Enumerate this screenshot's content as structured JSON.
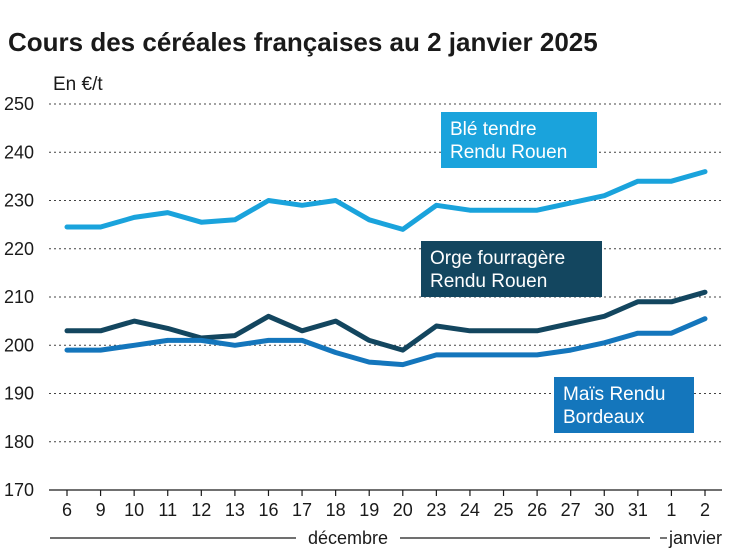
{
  "chart_data": {
    "type": "line",
    "title": "Cours des céréales françaises au 2 janvier 2025",
    "ylabel": "En €/t",
    "xlabel": "",
    "ylim": [
      170,
      250
    ],
    "yticks": [
      170,
      180,
      190,
      200,
      210,
      220,
      230,
      240,
      250
    ],
    "grid": true,
    "categories": [
      "6",
      "9",
      "10",
      "11",
      "12",
      "13",
      "16",
      "17",
      "18",
      "19",
      "20",
      "23",
      "24",
      "25",
      "26",
      "27",
      "30",
      "31",
      "1",
      "2"
    ],
    "month_labels": [
      "décembre",
      "janvier"
    ],
    "series": [
      {
        "name": "Blé tendre Rendu Rouen",
        "legend_lines": [
          "Blé tendre",
          "Rendu Rouen"
        ],
        "color": "#1aa3dc",
        "values": [
          224.5,
          224.5,
          226.5,
          227.5,
          225.5,
          226,
          230,
          229,
          230,
          226,
          224,
          229,
          228,
          228,
          228,
          229.5,
          231,
          234,
          234,
          236
        ]
      },
      {
        "name": "Orge fourragère Rendu Rouen",
        "legend_lines": [
          "Orge fourragère",
          "Rendu Rouen"
        ],
        "color": "#13465f",
        "values": [
          203,
          203,
          205,
          203.5,
          201.5,
          202,
          206,
          203,
          205,
          201,
          199,
          204,
          203,
          203,
          203,
          204.5,
          206,
          209,
          209,
          211
        ]
      },
      {
        "name": "Maïs Rendu Bordeaux",
        "legend_lines": [
          "Maïs Rendu",
          "Bordeaux"
        ],
        "color": "#1476bc",
        "values": [
          199,
          199,
          200,
          201,
          201,
          200,
          201,
          201,
          198.5,
          196.5,
          196,
          198,
          198,
          198,
          198,
          199,
          200.5,
          202.5,
          202.5,
          205.5
        ]
      }
    ]
  }
}
